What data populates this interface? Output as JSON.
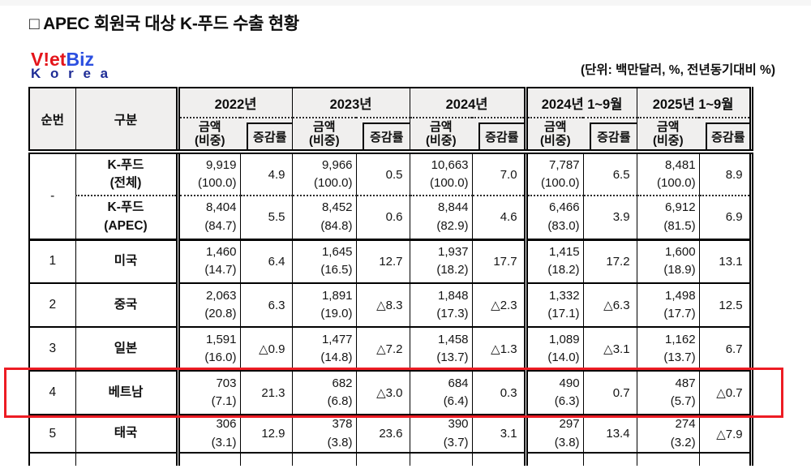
{
  "page": {
    "title": "□ APEC 회원국 대상 K-푸드 수출 현황",
    "unit_note": "(단위: 백만달러, %, 전년동기대비 %)",
    "logo": {
      "line1_red": "V!et",
      "line1_blue": "Biz",
      "line2": "K o r e a"
    }
  },
  "table": {
    "headers": {
      "seq": "순번",
      "category": "구분",
      "amount": "금액\n(비중)",
      "rate": "증감률",
      "periods": [
        "2022년",
        "2023년",
        "2024년",
        "2024년 1~9월",
        "2025년 1~9월"
      ]
    },
    "rows": [
      {
        "seq": "-",
        "label": "K-푸드\n(전체)",
        "highlighted": false,
        "cells": [
          "9,919\n(100.0)",
          "4.9",
          "9,966\n(100.0)",
          "0.5",
          "10,663\n(100.0)",
          "7.0",
          "7,787\n(100.0)",
          "6.5",
          "8,481\n(100.0)",
          "8.9"
        ]
      },
      {
        "seq": "",
        "label": "K-푸드\n(APEC)",
        "highlighted": false,
        "cells": [
          "8,404\n(84.7)",
          "5.5",
          "8,452\n(84.8)",
          "0.6",
          "8,844\n(82.9)",
          "4.6",
          "6,466\n(83.0)",
          "3.9",
          "6,912\n(81.5)",
          "6.9"
        ]
      },
      {
        "seq": "1",
        "label": "미국",
        "highlighted": false,
        "cells": [
          "1,460\n(14.7)",
          "6.4",
          "1,645\n(16.5)",
          "12.7",
          "1,937\n(18.2)",
          "17.7",
          "1,415\n(18.2)",
          "17.2",
          "1,600\n(18.9)",
          "13.1"
        ]
      },
      {
        "seq": "2",
        "label": "중국",
        "highlighted": false,
        "cells": [
          "2,063\n(20.8)",
          "6.3",
          "1,891\n(19.0)",
          "△8.3",
          "1,848\n(17.3)",
          "△2.3",
          "1,332\n(17.1)",
          "△6.3",
          "1,498\n(17.7)",
          "12.5"
        ]
      },
      {
        "seq": "3",
        "label": "일본",
        "highlighted": false,
        "cells": [
          "1,591\n(16.0)",
          "△0.9",
          "1,477\n(14.8)",
          "△7.2",
          "1,458\n(13.7)",
          "△1.3",
          "1,089\n(14.0)",
          "△3.1",
          "1,162\n(13.7)",
          "6.7"
        ]
      },
      {
        "seq": "4",
        "label": "베트남",
        "highlighted": true,
        "cells": [
          "703\n(7.1)",
          "21.3",
          "682\n(6.8)",
          "△3.0",
          "684\n(6.4)",
          "0.3",
          "490\n(6.3)",
          "0.7",
          "487\n(5.7)",
          "△0.7"
        ]
      },
      {
        "seq": "5",
        "label": "태국",
        "highlighted": false,
        "cells": [
          "306\n(3.1)",
          "12.9",
          "378\n(3.8)",
          "23.6",
          "390\n(3.7)",
          "3.1",
          "297\n(3.8)",
          "13.4",
          "274\n(3.2)",
          "△7.9"
        ]
      }
    ],
    "highlight_color": "#ed1c24"
  }
}
